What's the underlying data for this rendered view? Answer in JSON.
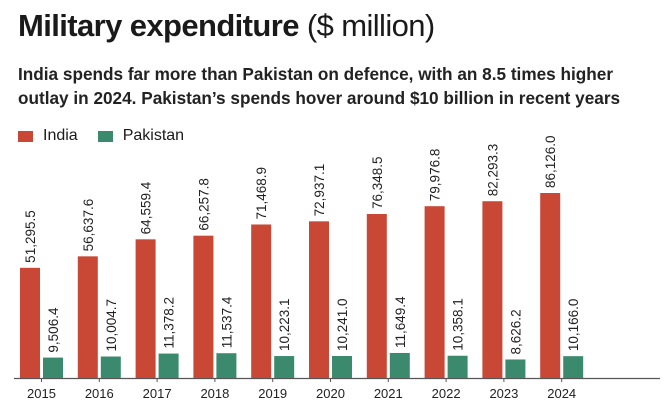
{
  "header": {
    "title": "Military expenditure",
    "title_unit": "($ million)",
    "subtitle": "India spends far more than Pakistan on defence, with an 8.5 times higher outlay in 2024. Pakistan’s spends hover around $10 billion in recent years"
  },
  "colors": {
    "india": "#c94735",
    "pakistan": "#3c8a6e"
  },
  "chart_data": {
    "type": "bar",
    "title": "Military expenditure ($ million)",
    "subtitle": "India spends far more than Pakistan on defence, with an 8.5 times higher outlay in 2024. Pakistan’s spends hover around $10 billion in recent years",
    "categories": [
      "2015",
      "2016",
      "2017",
      "2018",
      "2019",
      "2020",
      "2021",
      "2022",
      "2023",
      "2024"
    ],
    "series": [
      {
        "name": "India",
        "color": "#c94735",
        "values": [
          51295.5,
          56637.6,
          64559.4,
          66257.8,
          71468.9,
          72937.1,
          76348.5,
          79976.8,
          82293.3,
          86126.0
        ],
        "labels": [
          "51,295.5",
          "56,637.6",
          "64,559.4",
          "66,257.8",
          "71,468.9",
          "72,937.1",
          "76,348.5",
          "79,976.8",
          "82,293.3",
          "86,126.0"
        ]
      },
      {
        "name": "Pakistan",
        "color": "#3c8a6e",
        "values": [
          9506.4,
          10004.7,
          11378.2,
          11537.4,
          10223.1,
          10241.0,
          11649.4,
          10358.1,
          8626.2,
          10166.0
        ],
        "labels": [
          "9,506.4",
          "10,004.7",
          "11,378.2",
          "11,537.4",
          "10,223.1",
          "10,241.0",
          "11,649.4",
          "10,358.1",
          "8,626.2",
          "10,166.0"
        ]
      }
    ],
    "legend": "top-left",
    "grid": false,
    "ylim": [
      0,
      86126
    ]
  }
}
